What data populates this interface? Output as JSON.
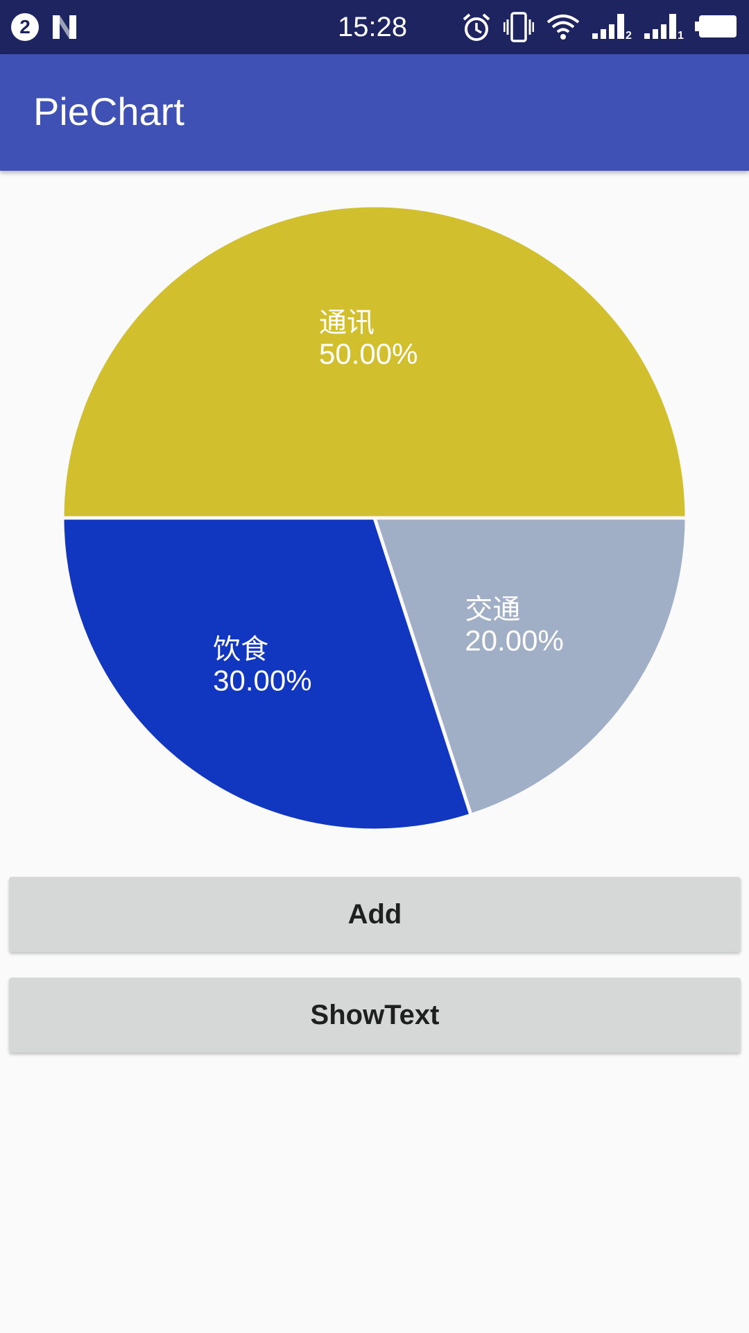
{
  "status_bar": {
    "notification_count": "2",
    "time": "15:28",
    "icons": [
      "notification-badge",
      "n-logo",
      "alarm-icon",
      "vibrate-icon",
      "wifi-icon",
      "signal-sim2-icon",
      "signal-sim1-icon",
      "battery-icon"
    ],
    "sim_labels": [
      "2",
      "1"
    ],
    "background": "#1e2460"
  },
  "app_bar": {
    "title": "PieChart",
    "background": "#3f51b5"
  },
  "chart_data": {
    "type": "pie",
    "slices": [
      {
        "label": "通讯",
        "value": 50,
        "percent_text": "50.00%",
        "color": "#d2bf2d"
      },
      {
        "label": "交通",
        "value": 20,
        "percent_text": "20.00%",
        "color": "#a0aec6"
      },
      {
        "label": "饮食",
        "value": 30,
        "percent_text": "30.00%",
        "color": "#1136c0"
      }
    ],
    "start_direction": "left",
    "legend": "none",
    "label_color": "#ffffff"
  },
  "buttons": {
    "add_label": "Add",
    "showtext_label": "ShowText"
  }
}
